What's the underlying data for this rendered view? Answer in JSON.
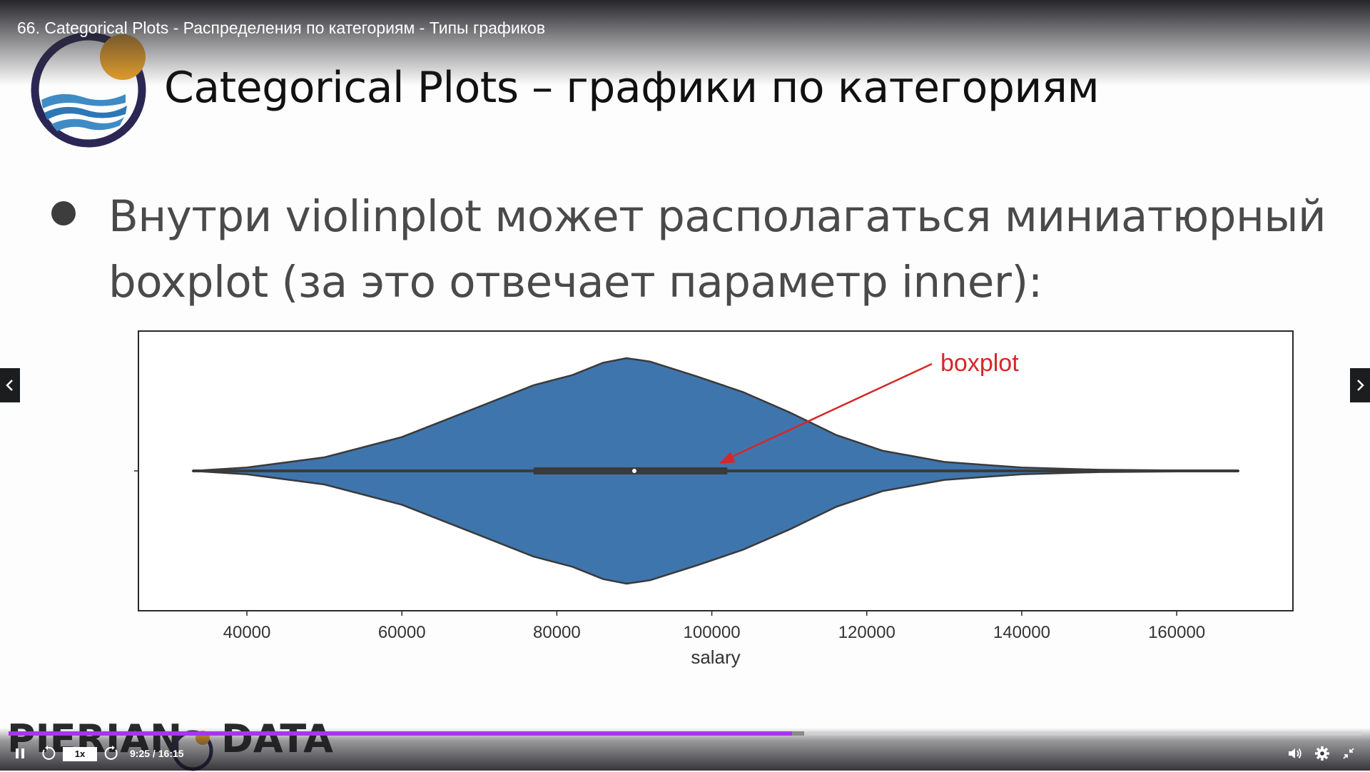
{
  "player": {
    "video_title": "66. Categorical Plots - Распределения по категориям - Типы графиков",
    "speed_label": "1x",
    "current_time": "9:25",
    "time_separator": " / ",
    "total_time": "16:15",
    "progress_fraction": 0.579,
    "buffered_fraction": 0.588,
    "accent_color": "#a435f0"
  },
  "slide": {
    "title": "Categorical Plots – графики по категориям",
    "bullet_line1": "Внутри violinplot может располагаться миниатюрный",
    "bullet_line2": "boxplot (за это отвечает параметр inner):",
    "brand_left": "PIERIAN",
    "brand_right": "DATA"
  },
  "icons": {
    "play_pause": "pause-icon",
    "rewind": "rewind-5-icon",
    "forward": "forward-5-icon",
    "volume": "volume-icon",
    "settings": "gear-icon",
    "fullscreen": "exit-fullscreen-icon",
    "prev": "chevron-left-icon",
    "next": "chevron-right-icon"
  },
  "chart_data": {
    "type": "violin",
    "title": "",
    "xlabel": "salary",
    "ylabel": "",
    "xlim": [
      26000,
      175000
    ],
    "xticks": [
      40000,
      60000,
      80000,
      100000,
      120000,
      140000,
      160000
    ],
    "xtick_labels": [
      "40000",
      "60000",
      "80000",
      "100000",
      "120000",
      "140000",
      "160000"
    ],
    "fill_color": "#3f75ad",
    "density_profile": [
      {
        "x": 33000,
        "w": 0.0
      },
      {
        "x": 40000,
        "w": 0.03
      },
      {
        "x": 50000,
        "w": 0.12
      },
      {
        "x": 60000,
        "w": 0.3
      },
      {
        "x": 70000,
        "w": 0.57
      },
      {
        "x": 77000,
        "w": 0.76
      },
      {
        "x": 82000,
        "w": 0.85
      },
      {
        "x": 86000,
        "w": 0.96
      },
      {
        "x": 89000,
        "w": 1.0
      },
      {
        "x": 92000,
        "w": 0.97
      },
      {
        "x": 98000,
        "w": 0.84
      },
      {
        "x": 104000,
        "w": 0.7
      },
      {
        "x": 110000,
        "w": 0.52
      },
      {
        "x": 116000,
        "w": 0.32
      },
      {
        "x": 122000,
        "w": 0.18
      },
      {
        "x": 130000,
        "w": 0.08
      },
      {
        "x": 140000,
        "w": 0.03
      },
      {
        "x": 150000,
        "w": 0.01
      },
      {
        "x": 168000,
        "w": 0.0
      }
    ],
    "box": {
      "whisker_low": 33000,
      "q1": 77000,
      "median": 90000,
      "q3": 102000,
      "whisker_high": 168000
    },
    "annotation": {
      "text": "boxplot",
      "color": "#d62728"
    }
  }
}
